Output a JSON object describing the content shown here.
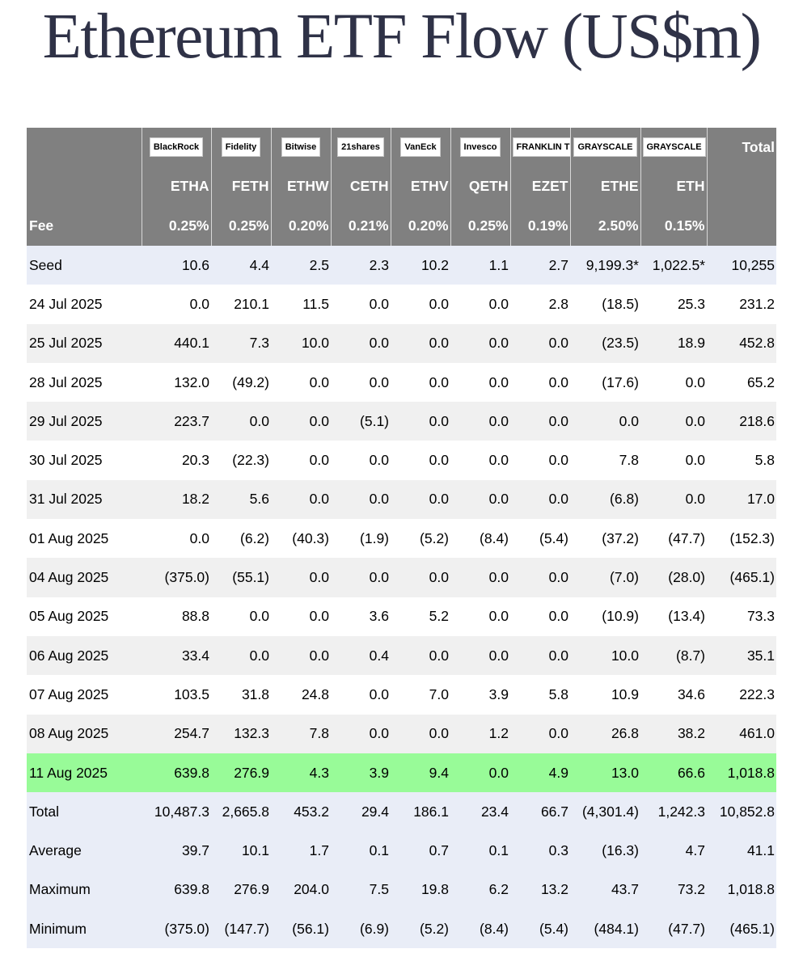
{
  "title": "Ethereum ETF Flow (US$m)",
  "issuers": [
    "BlackRock",
    "Fidelity",
    "Bitwise",
    "21shares",
    "VanEck",
    "Invesco",
    "FRANKLIN TEMPLETON",
    "GRAYSCALE",
    "GRAYSCALE"
  ],
  "total_label": "Total",
  "tickers": [
    "ETHA",
    "FETH",
    "ETHW",
    "CETH",
    "ETHV",
    "QETH",
    "EZET",
    "ETHE",
    "ETH"
  ],
  "fee_label": "Fee",
  "fees": [
    "0.25%",
    "0.25%",
    "0.20%",
    "0.21%",
    "0.20%",
    "0.25%",
    "0.19%",
    "2.50%",
    "0.15%"
  ],
  "rows": [
    {
      "label": "Seed",
      "values": [
        "10.6",
        "4.4",
        "2.5",
        "2.3",
        "10.2",
        "1.1",
        "2.7",
        "9,199.3*",
        "1,022.5*",
        "10,255"
      ]
    },
    {
      "label": "24 Jul 2025",
      "values": [
        "0.0",
        "210.1",
        "11.5",
        "0.0",
        "0.0",
        "0.0",
        "2.8",
        "(18.5)",
        "25.3",
        "231.2"
      ]
    },
    {
      "label": "25 Jul 2025",
      "values": [
        "440.1",
        "7.3",
        "10.0",
        "0.0",
        "0.0",
        "0.0",
        "0.0",
        "(23.5)",
        "18.9",
        "452.8"
      ]
    },
    {
      "label": "28 Jul 2025",
      "values": [
        "132.0",
        "(49.2)",
        "0.0",
        "0.0",
        "0.0",
        "0.0",
        "0.0",
        "(17.6)",
        "0.0",
        "65.2"
      ]
    },
    {
      "label": "29 Jul 2025",
      "values": [
        "223.7",
        "0.0",
        "0.0",
        "(5.1)",
        "0.0",
        "0.0",
        "0.0",
        "0.0",
        "0.0",
        "218.6"
      ]
    },
    {
      "label": "30 Jul 2025",
      "values": [
        "20.3",
        "(22.3)",
        "0.0",
        "0.0",
        "0.0",
        "0.0",
        "0.0",
        "7.8",
        "0.0",
        "5.8"
      ]
    },
    {
      "label": "31 Jul 2025",
      "values": [
        "18.2",
        "5.6",
        "0.0",
        "0.0",
        "0.0",
        "0.0",
        "0.0",
        "(6.8)",
        "0.0",
        "17.0"
      ]
    },
    {
      "label": "01 Aug 2025",
      "values": [
        "0.0",
        "(6.2)",
        "(40.3)",
        "(1.9)",
        "(5.2)",
        "(8.4)",
        "(5.4)",
        "(37.2)",
        "(47.7)",
        "(152.3)"
      ]
    },
    {
      "label": "04 Aug 2025",
      "values": [
        "(375.0)",
        "(55.1)",
        "0.0",
        "0.0",
        "0.0",
        "0.0",
        "0.0",
        "(7.0)",
        "(28.0)",
        "(465.1)"
      ]
    },
    {
      "label": "05 Aug 2025",
      "values": [
        "88.8",
        "0.0",
        "0.0",
        "3.6",
        "5.2",
        "0.0",
        "0.0",
        "(10.9)",
        "(13.4)",
        "73.3"
      ]
    },
    {
      "label": "06 Aug 2025",
      "values": [
        "33.4",
        "0.0",
        "0.0",
        "0.4",
        "0.0",
        "0.0",
        "0.0",
        "10.0",
        "(8.7)",
        "35.1"
      ]
    },
    {
      "label": "07 Aug 2025",
      "values": [
        "103.5",
        "31.8",
        "24.8",
        "0.0",
        "7.0",
        "3.9",
        "5.8",
        "10.9",
        "34.6",
        "222.3"
      ]
    },
    {
      "label": "08 Aug 2025",
      "values": [
        "254.7",
        "132.3",
        "7.8",
        "0.0",
        "0.0",
        "1.2",
        "0.0",
        "26.8",
        "38.2",
        "461.0"
      ]
    },
    {
      "label": "11 Aug 2025",
      "values": [
        "639.8",
        "276.9",
        "4.3",
        "3.9",
        "9.4",
        "0.0",
        "4.9",
        "13.0",
        "66.6",
        "1,018.8"
      ]
    }
  ],
  "summary": [
    {
      "label": "Total",
      "values": [
        "10,487.3",
        "2,665.8",
        "453.2",
        "29.4",
        "186.1",
        "23.4",
        "66.7",
        "(4,301.4)",
        "1,242.3",
        "10,852.8"
      ]
    },
    {
      "label": "Average",
      "values": [
        "39.7",
        "10.1",
        "1.7",
        "0.1",
        "0.7",
        "0.1",
        "0.3",
        "(16.3)",
        "4.7",
        "41.1"
      ]
    },
    {
      "label": "Maximum",
      "values": [
        "639.8",
        "276.9",
        "204.0",
        "7.5",
        "19.8",
        "6.2",
        "13.2",
        "43.7",
        "73.2",
        "1,018.8"
      ]
    },
    {
      "label": "Minimum",
      "values": [
        "(375.0)",
        "(147.7)",
        "(56.1)",
        "(6.9)",
        "(5.2)",
        "(8.4)",
        "(5.4)",
        "(484.1)",
        "(47.7)",
        "(465.1)"
      ]
    }
  ],
  "colors": {
    "header_bg": "#808080",
    "negative": "#e00000",
    "highlight": "#98fb98",
    "seed_bg": "#e9edf7",
    "stripe": "#f0f0f0"
  }
}
